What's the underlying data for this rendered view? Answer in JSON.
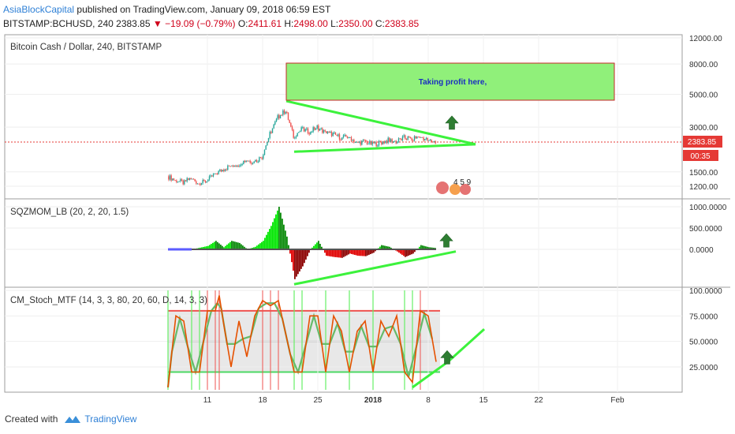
{
  "header": {
    "author": "AsiaBlockCapital",
    "published": "published on TradingView.com, January 09, 2018 06:59 EST",
    "symbol": "BITSTAMP:BCHUSD, 240",
    "last": "2383.85",
    "change": "▼ −19.09 (−0.79%)",
    "o_label": "O:",
    "o_value": "2411.61",
    "h_label": "H:",
    "h_value": "2498.00",
    "l_label": "L:",
    "l_value": "2350.00",
    "c_label": "C:",
    "c_value": "2383.85"
  },
  "panes": {
    "main_label": "Bitcoin Cash / Dollar, 240, BITSTAMP",
    "sqz_label": "SQZMOM_LB (20, 2, 20, 1.5)",
    "stoch_label": "CM_Stoch_MTF (14, 3, 3, 80, 20, 60, D, 14, 3, 3)"
  },
  "annotation": {
    "text": "Taking profit here,",
    "fill": "#90f07a",
    "border": "#c62828",
    "text_color": "#1a2fc0"
  },
  "events_badge": "4 5 9",
  "price_badge": {
    "price": "2383.85",
    "countdown": "00:35",
    "color": "#e53935"
  },
  "footer": {
    "created_with": "Created with",
    "brand": "TradingView"
  },
  "colors": {
    "up": "#26a69a",
    "down": "#ef5350",
    "trendline": "#3cf23c",
    "arrow": "#2e7d32",
    "stoch_k": "#e65100",
    "stoch_d": "#66bb6a"
  },
  "chart_data": [
    {
      "type": "candlestick",
      "title": "Bitcoin Cash / Dollar, 240, BITSTAMP",
      "y_scale": "log",
      "y_ticks": [
        "12000.00",
        "8000.00",
        "5000.00",
        "3000.00",
        "1500.00",
        "1200.00"
      ],
      "y_tick_values": [
        12000,
        8000,
        5000,
        3000,
        1500,
        1200
      ],
      "x_ticks": [
        "11",
        "18",
        "25",
        "2018",
        "8",
        "15",
        "22",
        "Feb"
      ],
      "x_tick_dates": [
        "2017-12-11",
        "2017-12-18",
        "2017-12-25",
        "2018-01-01",
        "2018-01-08",
        "2018-01-15",
        "2018-01-22",
        "2018-02-01"
      ],
      "close_path": [
        [
          "2017-12-06",
          1400
        ],
        [
          "2017-12-07",
          1320
        ],
        [
          "2017-12-08",
          1270
        ],
        [
          "2017-12-09",
          1360
        ],
        [
          "2017-12-10",
          1250
        ],
        [
          "2017-12-11",
          1300
        ],
        [
          "2017-12-12",
          1450
        ],
        [
          "2017-12-13",
          1550
        ],
        [
          "2017-12-14",
          1650
        ],
        [
          "2017-12-15",
          1700
        ],
        [
          "2017-12-16",
          1800
        ],
        [
          "2017-12-17",
          1750
        ],
        [
          "2017-12-18",
          1900
        ],
        [
          "2017-12-19",
          2700
        ],
        [
          "2017-12-20",
          3500
        ],
        [
          "2017-12-21",
          3900
        ],
        [
          "2017-12-22",
          2600
        ],
        [
          "2017-12-23",
          2900
        ],
        [
          "2017-12-24",
          2800
        ],
        [
          "2017-12-25",
          3000
        ],
        [
          "2017-12-26",
          2750
        ],
        [
          "2017-12-27",
          2700
        ],
        [
          "2017-12-28",
          2550
        ],
        [
          "2017-12-29",
          2600
        ],
        [
          "2017-12-30",
          2350
        ],
        [
          "2017-12-31",
          2400
        ],
        [
          "2018-01-01",
          2300
        ],
        [
          "2018-01-02",
          2350
        ],
        [
          "2018-01-03",
          2450
        ],
        [
          "2018-01-04",
          2400
        ],
        [
          "2018-01-05",
          2550
        ],
        [
          "2018-01-06",
          2500
        ],
        [
          "2018-01-07",
          2600
        ],
        [
          "2018-01-08",
          2450
        ],
        [
          "2018-01-09",
          2384
        ]
      ],
      "annotation_box_price_range": [
        4300,
        8700
      ]
    },
    {
      "type": "histogram",
      "title": "SQZMOM_LB (20, 2, 20, 1.5)",
      "y_ticks": [
        "1000.0000",
        "500.0000",
        "0.0000"
      ],
      "y_tick_values": [
        1000,
        500,
        0
      ],
      "values": [
        [
          "2017-12-06",
          0
        ],
        [
          "2017-12-09",
          0
        ],
        [
          "2017-12-11",
          80
        ],
        [
          "2017-12-12",
          200
        ],
        [
          "2017-12-13",
          50
        ],
        [
          "2017-12-14",
          200
        ],
        [
          "2017-12-15",
          150
        ],
        [
          "2017-12-16",
          0
        ],
        [
          "2017-12-17",
          60
        ],
        [
          "2017-12-18",
          200
        ],
        [
          "2017-12-19",
          550
        ],
        [
          "2017-12-20",
          1000
        ],
        [
          "2017-12-21",
          300
        ],
        [
          "2017-12-22",
          -700
        ],
        [
          "2017-12-23",
          -400
        ],
        [
          "2017-12-24",
          0
        ],
        [
          "2017-12-25",
          200
        ],
        [
          "2017-12-26",
          -150
        ],
        [
          "2017-12-27",
          -180
        ],
        [
          "2017-12-28",
          -200
        ],
        [
          "2017-12-29",
          -100
        ],
        [
          "2017-12-30",
          -150
        ],
        [
          "2017-12-31",
          -160
        ],
        [
          "2018-01-01",
          -80
        ],
        [
          "2018-01-02",
          100
        ],
        [
          "2018-01-03",
          60
        ],
        [
          "2018-01-04",
          -50
        ],
        [
          "2018-01-05",
          -180
        ],
        [
          "2018-01-06",
          -100
        ],
        [
          "2018-01-07",
          100
        ],
        [
          "2018-01-08",
          50
        ],
        [
          "2018-01-09",
          30
        ]
      ]
    },
    {
      "type": "line",
      "title": "CM_Stoch_MTF (14, 3, 3, 80, 20, 60, D, 14, 3, 3)",
      "y_ticks": [
        "100.0000",
        "75.0000",
        "50.0000",
        "25.0000"
      ],
      "y_tick_values": [
        100,
        75,
        50,
        25
      ],
      "bands": {
        "upper": 80,
        "middle": 50,
        "lower": 20
      },
      "k_line": [
        [
          "2017-12-06",
          5
        ],
        [
          "2017-12-07",
          75
        ],
        [
          "2017-12-08",
          70
        ],
        [
          "2017-12-09",
          20
        ],
        [
          "2017-12-10",
          20
        ],
        [
          "2017-12-11",
          80
        ],
        [
          "2017-12-12",
          80
        ],
        [
          "2017-12-12.5",
          95
        ],
        [
          "2017-12-13",
          70
        ],
        [
          "2017-12-14",
          25
        ],
        [
          "2017-12-15",
          70
        ],
        [
          "2017-12-16",
          35
        ],
        [
          "2017-12-17",
          75
        ],
        [
          "2017-12-18",
          90
        ],
        [
          "2017-12-19",
          85
        ],
        [
          "2017-12-20",
          90
        ],
        [
          "2017-12-21",
          55
        ],
        [
          "2017-12-22",
          20
        ],
        [
          "2017-12-23",
          20
        ],
        [
          "2017-12-24",
          75
        ],
        [
          "2017-12-25",
          75
        ],
        [
          "2017-12-26",
          20
        ],
        [
          "2017-12-27",
          75
        ],
        [
          "2017-12-28",
          60
        ],
        [
          "2017-12-29",
          20
        ],
        [
          "2017-12-30",
          60
        ],
        [
          "2017-12-31",
          70
        ],
        [
          "2018-01-01",
          20
        ],
        [
          "2018-01-02",
          70
        ],
        [
          "2018-01-03",
          55
        ],
        [
          "2018-01-04",
          75
        ],
        [
          "2018-01-05",
          20
        ],
        [
          "2018-01-06",
          10
        ],
        [
          "2018-01-07",
          80
        ],
        [
          "2018-01-08",
          75
        ],
        [
          "2018-01-09",
          30
        ]
      ]
    }
  ]
}
